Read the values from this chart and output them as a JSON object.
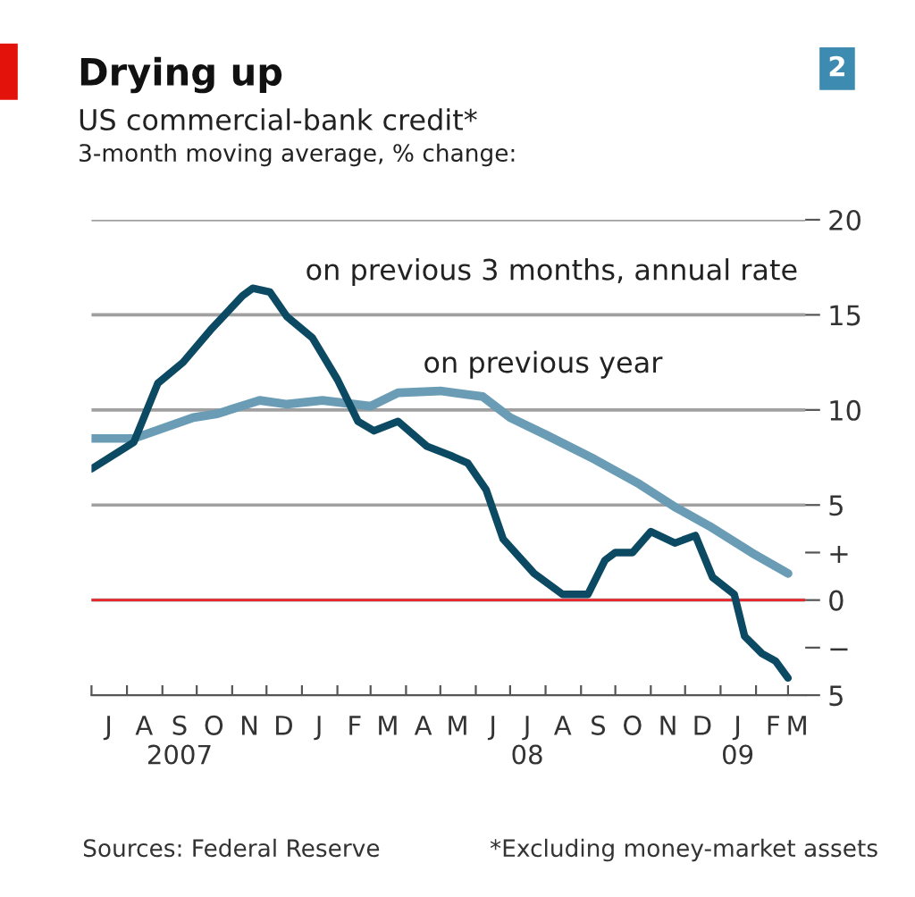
{
  "chart_data": {
    "type": "line",
    "title": "Drying up",
    "subtitle": "US commercial-bank credit*",
    "ylabel": "3-month moving average, % change:",
    "annotations": [
      "2",
      "Sources: Federal Reserve",
      "*Excluding money-market assets"
    ],
    "series": [
      {
        "name": "on previous 3 months, annual rate",
        "color": "#0b4a62",
        "x": [
          "2007-07-01",
          "2007-08-07",
          "2007-08-28",
          "2007-09-19",
          "2007-10-13",
          "2007-11-10",
          "2007-11-19",
          "2007-12-04",
          "2007-12-19",
          "2008-01-10",
          "2008-02-01",
          "2008-02-19",
          "2008-03-04",
          "2008-03-25",
          "2008-04-19",
          "2008-05-10",
          "2008-05-25",
          "2008-06-10",
          "2008-06-25",
          "2008-07-22",
          "2008-08-16",
          "2008-09-07",
          "2008-09-22",
          "2008-10-01",
          "2008-10-16",
          "2008-11-01",
          "2008-11-22",
          "2008-12-10",
          "2008-12-25",
          "2009-01-13",
          "2009-01-22",
          "2009-02-06",
          "2009-02-18",
          "2009-03-01"
        ],
        "values": [
          6.9,
          8.3,
          11.4,
          12.5,
          14.2,
          16.0,
          16.4,
          16.2,
          14.9,
          13.8,
          11.6,
          9.4,
          8.9,
          9.4,
          8.1,
          7.6,
          7.2,
          5.8,
          3.2,
          1.4,
          0.3,
          0.3,
          2.1,
          2.5,
          2.5,
          3.6,
          3.0,
          3.4,
          1.2,
          0.3,
          -1.9,
          -2.8,
          -3.2,
          -4.1
        ]
      },
      {
        "name": "on previous year",
        "color": "#6a9db5",
        "x": [
          "2007-07-01",
          "2007-08-07",
          "2007-09-28",
          "2007-10-19",
          "2007-11-25",
          "2007-12-19",
          "2008-01-19",
          "2008-03-01",
          "2008-03-25",
          "2008-05-01",
          "2008-06-07",
          "2008-07-01",
          "2008-08-01",
          "2008-09-13",
          "2008-10-22",
          "2008-11-22",
          "2008-12-22",
          "2009-01-28",
          "2009-03-01"
        ],
        "values": [
          8.5,
          8.5,
          9.6,
          9.8,
          10.5,
          10.3,
          10.5,
          10.2,
          10.9,
          11.0,
          10.7,
          9.6,
          8.7,
          7.4,
          6.1,
          4.9,
          3.9,
          2.5,
          1.4
        ]
      }
    ],
    "xlim": [
      "2007-07-01",
      "2009-03-16"
    ],
    "xticks": [
      {
        "value": "2007-07-01",
        "label": null
      },
      {
        "value": "2007-08-01",
        "label": null
      },
      {
        "value": "2007-09-01",
        "label": null
      },
      {
        "value": "2007-10-01",
        "label": null
      },
      {
        "value": "2007-11-01",
        "label": null
      },
      {
        "value": "2007-12-01",
        "label": null
      },
      {
        "value": "2008-01-01",
        "label": null
      },
      {
        "value": "2008-02-01",
        "label": null
      },
      {
        "value": "2008-03-01",
        "label": null
      },
      {
        "value": "2008-04-01",
        "label": null
      },
      {
        "value": "2008-05-01",
        "label": null
      },
      {
        "value": "2008-06-01",
        "label": null
      },
      {
        "value": "2008-07-01",
        "label": null
      },
      {
        "value": "2008-08-01",
        "label": null
      },
      {
        "value": "2008-09-01",
        "label": null
      },
      {
        "value": "2008-10-01",
        "label": null
      },
      {
        "value": "2008-11-01",
        "label": null
      },
      {
        "value": "2008-12-01",
        "label": null
      },
      {
        "value": "2009-01-01",
        "label": null
      },
      {
        "value": "2009-02-01",
        "label": null
      },
      {
        "value": "2009-03-01",
        "label": null
      },
      {
        "value": "2007-07-16",
        "label": "J"
      },
      {
        "value": "2007-08-16",
        "label": "A"
      },
      {
        "value": "2007-09-16",
        "label": "S\n2007"
      },
      {
        "value": "2007-10-16",
        "label": "O"
      },
      {
        "value": "2007-11-16",
        "label": "N"
      },
      {
        "value": "2007-12-16",
        "label": "D"
      },
      {
        "value": "2008-01-16",
        "label": "J"
      },
      {
        "value": "2008-02-16",
        "label": "F"
      },
      {
        "value": "2008-03-16",
        "label": "M"
      },
      {
        "value": "2008-04-16",
        "label": "A"
      },
      {
        "value": "2008-05-16",
        "label": "M"
      },
      {
        "value": "2008-06-16",
        "label": "J"
      },
      {
        "value": "2008-07-16",
        "label": "J\n08"
      },
      {
        "value": "2008-08-16",
        "label": "A"
      },
      {
        "value": "2008-09-16",
        "label": "S"
      },
      {
        "value": "2008-10-16",
        "label": "O"
      },
      {
        "value": "2008-11-16",
        "label": "N"
      },
      {
        "value": "2008-12-16",
        "label": "D"
      },
      {
        "value": "2009-01-16",
        "label": "J\n09"
      },
      {
        "value": "2009-02-16",
        "label": "F"
      },
      {
        "value": "2009-03-09",
        "label": "M"
      }
    ],
    "ylim": [
      -5,
      20
    ],
    "yticks": [
      {
        "value": -5,
        "label": "5"
      },
      {
        "value": -2.5,
        "label": "−"
      },
      0,
      {
        "value": 2.5,
        "label": "+"
      },
      5,
      10,
      15,
      20
    ],
    "grid": "y",
    "legend": false,
    "line_style": "solid",
    "marker": "none",
    "ref_lines": [
      {
        "axis": "y",
        "value": 0,
        "color": "#e8262b"
      }
    ]
  }
}
